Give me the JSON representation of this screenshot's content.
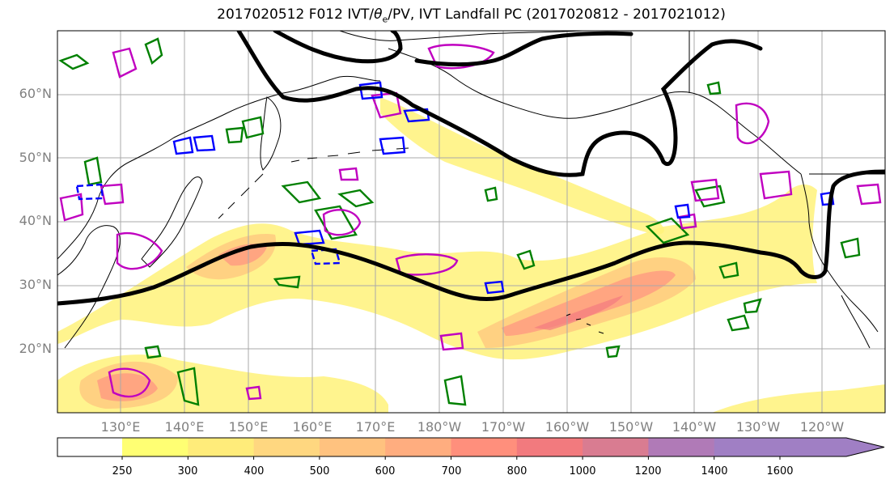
{
  "title": {
    "prefix": "2017020512 F012 IVT/",
    "theta": "θ",
    "sub": "e",
    "suffix": "/PV, IVT Landfall PC (2017020812 - 2017021012)"
  },
  "lat_labels": [
    "60°N",
    "50°N",
    "40°N",
    "30°N",
    "20°N"
  ],
  "lon_labels": [
    "130°E",
    "140°E",
    "150°E",
    "160°E",
    "170°E",
    "180°W",
    "170°W",
    "160°W",
    "150°W",
    "140°W",
    "130°W",
    "120°W"
  ],
  "colorbar": {
    "ticks": [
      "250",
      "300",
      "400",
      "500",
      "600",
      "700",
      "800",
      "1000",
      "1200",
      "1400",
      "1600"
    ],
    "colors": [
      "#ffff73",
      "#ffec7a",
      "#ffd780",
      "#ffc27f",
      "#ffad7f",
      "#ff8f7c",
      "#f27a7e",
      "#d97c91",
      "#b07ab7",
      "#a07fc4"
    ]
  },
  "colors": {
    "ivt_light": "#fff27a",
    "ivt_mid": "#ffc87f",
    "ivt_high": "#ff9580",
    "ivt_peak": "#f47a80",
    "pc_contour": "#000000",
    "theta_e": "#008000",
    "pv_pos": "#c000c0",
    "pv_neg": "#0000ff",
    "grid": "#a9a9a9",
    "coast": "#000000"
  }
}
